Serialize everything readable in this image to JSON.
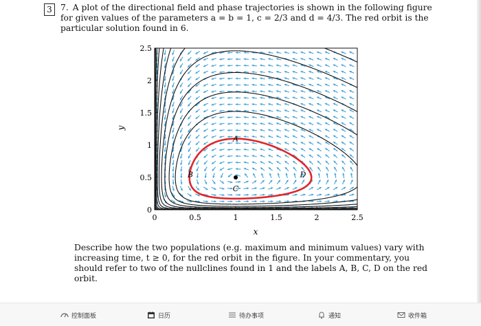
{
  "question": {
    "box_number": "3",
    "item_number": "7.",
    "intro_text": "A plot of the directional field and phase trajectories is shown in the following figure for given values of the parameters a = b = 1, c = 2/3 and d = 4/3. The red orbit is the particular solution found in 6.",
    "description": "Describe how the two populations (e.g. maximum and minimum values) vary with increasing time, t ≥ 0, for the red orbit in the figure. In your commentary, you should refer to two of the nullclines found in 1 and the labels A, B, C, D on the red orbit."
  },
  "chart_data": {
    "type": "scatter",
    "title": "",
    "xlabel": "x",
    "ylabel": "y",
    "xlim": [
      0,
      2.5
    ],
    "ylim": [
      0,
      2.5
    ],
    "xticks": [
      "0",
      "0.5",
      "1",
      "1.5",
      "2",
      "2.5"
    ],
    "yticks": [
      "0",
      "0.5",
      "1",
      "1.5",
      "2",
      "2.5"
    ],
    "equilibrium": {
      "x": 1,
      "y": 0.5
    },
    "orbit_labels": [
      {
        "label": "A",
        "x": 1.0,
        "y": 1.1
      },
      {
        "label": "B",
        "x": 0.44,
        "y": 0.55
      },
      {
        "label": "C",
        "x": 1.0,
        "y": 0.33
      },
      {
        "label": "D",
        "x": 1.83,
        "y": 0.55
      }
    ],
    "colors": {
      "red_orbit": "#e0262b",
      "trajectories": "#111111",
      "field_arrows": "#3fa2d6"
    }
  },
  "toolbar": {
    "items": [
      {
        "label": "控制面板"
      },
      {
        "label": "日历"
      },
      {
        "label": "待办事项"
      },
      {
        "label": "通知"
      },
      {
        "label": "收件箱"
      }
    ]
  }
}
